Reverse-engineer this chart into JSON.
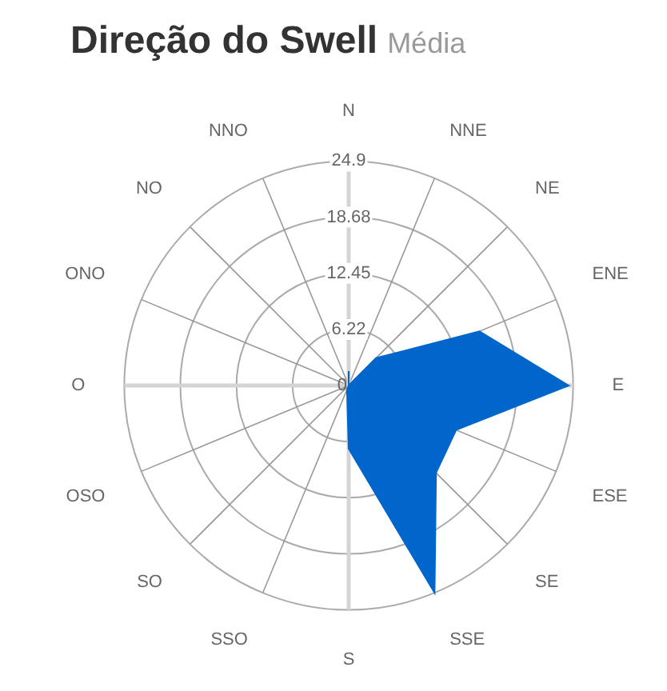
{
  "chart_data": {
    "type": "radar",
    "title": "Direção do Swell",
    "subtitle": "Média",
    "categories": [
      "N",
      "NNE",
      "NE",
      "ENE",
      "E",
      "ESE",
      "SE",
      "SSE",
      "S",
      "SSO",
      "SO",
      "OSO",
      "O",
      "ONO",
      "NO",
      "NNO"
    ],
    "series": [
      {
        "color": "#0066cc",
        "values": [
          1.6,
          0,
          4.3,
          15.7,
          24.4,
          12.9,
          13.7,
          24.9,
          7.0,
          0.5,
          0,
          0,
          0,
          0,
          0,
          0
        ]
      }
    ],
    "ylim": [
      0,
      24.9
    ],
    "yticks": [
      0,
      6.22,
      12.45,
      18.68,
      24.9
    ],
    "grid": true,
    "marker": "none"
  }
}
